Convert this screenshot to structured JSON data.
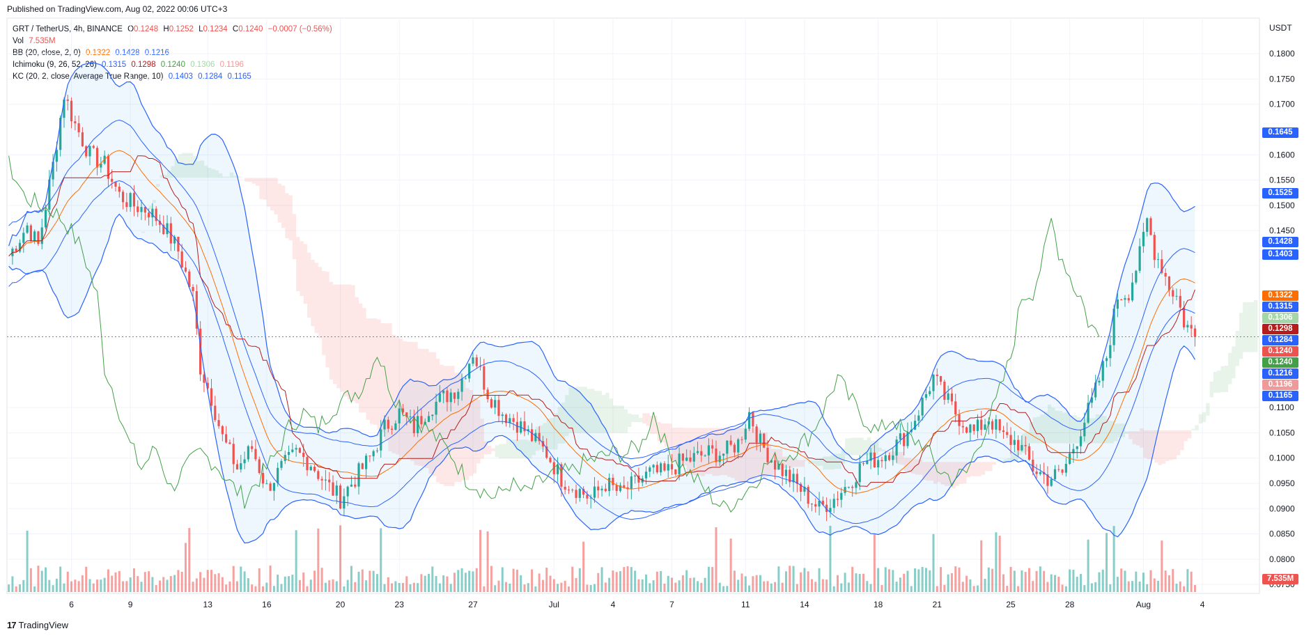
{
  "header": {
    "published": "Published on TradingView.com, Aug 02, 2022 00:06 UTC+3"
  },
  "legend": {
    "symbol": "GRT / TetherUS, 4h, BINANCE",
    "o_label": "O",
    "o": "0.1248",
    "h_label": "H",
    "h": "0.1252",
    "l_label": "L",
    "l": "0.1234",
    "c_label": "C",
    "c": "0.1240",
    "change": "−0.0007 (−0.56%)",
    "vol_label": "Vol",
    "vol": "7.535M",
    "bb_label": "BB (20, close, 2, 0)",
    "bb_basis": "0.1322",
    "bb_upper": "0.1428",
    "bb_lower": "0.1216",
    "ichimoku_label": "Ichimoku (9, 26, 52, 26)",
    "ich_conv": "0.1315",
    "ich_base": "0.1298",
    "ich_lag": "0.1240",
    "ich_spanA": "0.1306",
    "ich_spanB": "0.1196",
    "kc_label": "KC (20, 2, close, Average True Range, 10)",
    "kc_upper": "0.1403",
    "kc_basis": "0.1284",
    "kc_lower": "0.1165"
  },
  "colors": {
    "up": "#26a69a",
    "down": "#ef5350",
    "bb_basis": "#ff6d00",
    "kc": "#2962ff",
    "ich_conv": "#2962ff",
    "ich_base": "#b71c1c",
    "ich_lag": "#43a047",
    "cloud_up": "#a5d6a7",
    "cloud_down": "#ef9a9a"
  },
  "footer": {
    "brand": "TradingView",
    "logo_mark": "17"
  },
  "chart_data": {
    "type": "candlestick",
    "symbol": "GRT / TetherUS",
    "timeframe": "4h",
    "exchange": "BINANCE",
    "axis_currency": "USDT",
    "ylim": [
      0.0735,
      0.1865
    ],
    "y_ticks": [
      "0.1800",
      "0.1750",
      "0.1700",
      "0.1600",
      "0.1550",
      "0.1500",
      "0.1450",
      "0.1100",
      "0.1050",
      "0.1000",
      "0.0950",
      "0.0900",
      "0.0850",
      "0.0800",
      "0.0750"
    ],
    "x_ticks": [
      "6",
      "9",
      "13",
      "16",
      "20",
      "23",
      "27",
      "Jul",
      "4",
      "7",
      "11",
      "14",
      "18",
      "21",
      "25",
      "28",
      "Aug",
      "4"
    ],
    "x_tick_index": [
      17,
      33,
      54,
      70,
      90,
      106,
      126,
      148,
      164,
      180,
      200,
      216,
      236,
      252,
      272,
      288,
      308,
      324
    ],
    "price_line": 0.124,
    "price_tags": [
      {
        "text": "0.1645",
        "value": 0.1645,
        "color": "#2962ff"
      },
      {
        "text": "0.1525",
        "value": 0.1525,
        "color": "#2962ff"
      },
      {
        "text": "0.1428",
        "value": 0.1428,
        "color": "#2962ff"
      },
      {
        "text": "0.1403",
        "value": 0.1403,
        "color": "#2962ff"
      },
      {
        "text": "0.1322",
        "value": 0.1322,
        "color": "#ff6d00"
      },
      {
        "text": "0.1315",
        "value": 0.1315,
        "color": "#2962ff"
      },
      {
        "text": "0.1306",
        "value": 0.1306,
        "color": "#a5d6a7"
      },
      {
        "text": "0.1298",
        "value": 0.1298,
        "color": "#b71c1c"
      },
      {
        "text": "0.1284",
        "value": 0.1284,
        "color": "#2962ff"
      },
      {
        "text": "0.1240",
        "value": 0.124,
        "color": "#ef5350"
      },
      {
        "text": "0.1240",
        "value": 0.124,
        "color": "#43a047"
      },
      {
        "text": "0.1216",
        "value": 0.1216,
        "color": "#2962ff"
      },
      {
        "text": "0.1196",
        "value": 0.1196,
        "color": "#ef9a9a"
      },
      {
        "text": "0.1165",
        "value": 0.1165,
        "color": "#2962ff"
      }
    ],
    "volume_tag": "7.535M",
    "price_path": [
      [
        0,
        0.14
      ],
      [
        5,
        0.146
      ],
      [
        8,
        0.142
      ],
      [
        12,
        0.158
      ],
      [
        15,
        0.172
      ],
      [
        18,
        0.166
      ],
      [
        22,
        0.16
      ],
      [
        26,
        0.158
      ],
      [
        30,
        0.152
      ],
      [
        34,
        0.15
      ],
      [
        38,
        0.149
      ],
      [
        42,
        0.146
      ],
      [
        46,
        0.141
      ],
      [
        50,
        0.132
      ],
      [
        52,
        0.118
      ],
      [
        55,
        0.112
      ],
      [
        58,
        0.104
      ],
      [
        62,
        0.098
      ],
      [
        66,
        0.102
      ],
      [
        70,
        0.094
      ],
      [
        74,
        0.098
      ],
      [
        78,
        0.101
      ],
      [
        82,
        0.099
      ],
      [
        86,
        0.095
      ],
      [
        90,
        0.092
      ],
      [
        94,
        0.096
      ],
      [
        98,
        0.1
      ],
      [
        102,
        0.106
      ],
      [
        106,
        0.109
      ],
      [
        110,
        0.106
      ],
      [
        114,
        0.11
      ],
      [
        118,
        0.112
      ],
      [
        122,
        0.114
      ],
      [
        126,
        0.121
      ],
      [
        130,
        0.113
      ],
      [
        134,
        0.109
      ],
      [
        138,
        0.107
      ],
      [
        142,
        0.104
      ],
      [
        146,
        0.101
      ],
      [
        150,
        0.096
      ],
      [
        154,
        0.094
      ],
      [
        158,
        0.092
      ],
      [
        162,
        0.095
      ],
      [
        166,
        0.093
      ],
      [
        170,
        0.095
      ],
      [
        174,
        0.097
      ],
      [
        178,
        0.097
      ],
      [
        182,
        0.099
      ],
      [
        186,
        0.1
      ],
      [
        190,
        0.101
      ],
      [
        194,
        0.101
      ],
      [
        198,
        0.103
      ],
      [
        201,
        0.109
      ],
      [
        204,
        0.103
      ],
      [
        208,
        0.099
      ],
      [
        212,
        0.096
      ],
      [
        216,
        0.093
      ],
      [
        220,
        0.09
      ],
      [
        224,
        0.092
      ],
      [
        228,
        0.095
      ],
      [
        232,
        0.099
      ],
      [
        236,
        0.1
      ],
      [
        240,
        0.102
      ],
      [
        244,
        0.105
      ],
      [
        248,
        0.111
      ],
      [
        251,
        0.116
      ],
      [
        254,
        0.112
      ],
      [
        258,
        0.108
      ],
      [
        262,
        0.105
      ],
      [
        266,
        0.108
      ],
      [
        270,
        0.104
      ],
      [
        274,
        0.103
      ],
      [
        278,
        0.098
      ],
      [
        282,
        0.096
      ],
      [
        286,
        0.097
      ],
      [
        290,
        0.104
      ],
      [
        294,
        0.111
      ],
      [
        298,
        0.12
      ],
      [
        301,
        0.132
      ],
      [
        304,
        0.133
      ],
      [
        307,
        0.14
      ],
      [
        309,
        0.147
      ],
      [
        311,
        0.141
      ],
      [
        313,
        0.138
      ],
      [
        315,
        0.134
      ],
      [
        317,
        0.132
      ],
      [
        319,
        0.127
      ],
      [
        321,
        0.125
      ],
      [
        322,
        0.124
      ]
    ]
  }
}
